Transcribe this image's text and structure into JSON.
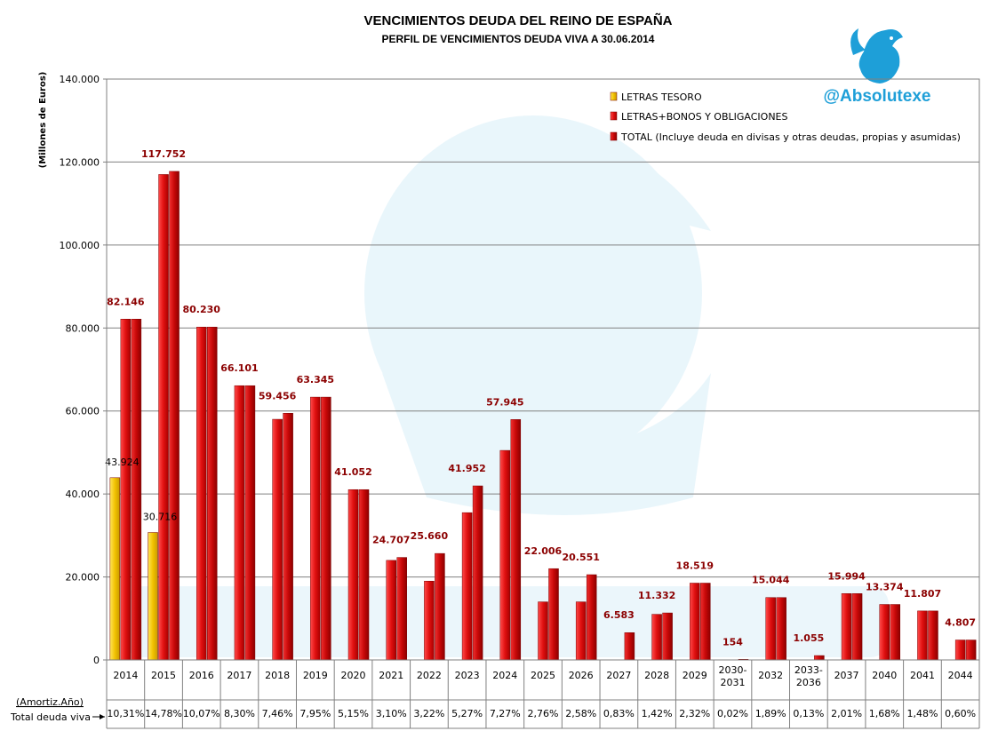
{
  "chart_data": {
    "type": "bar",
    "title": "VENCIMIENTOS DEUDA DEL REINO DE ESPAÑA",
    "subtitle": "PERFIL DE VENCIMIENTOS DEUDA VIVA A 30.06.2014",
    "ylabel": "(Millones de Euros)",
    "ylim": [
      0,
      140000
    ],
    "yticks": [
      0,
      20000,
      40000,
      60000,
      80000,
      100000,
      120000,
      140000
    ],
    "ytick_labels": [
      "0",
      "20.000",
      "40.000",
      "60.000",
      "80.000",
      "100.000",
      "120.000",
      "140.000"
    ],
    "grid": true,
    "legend_position": "top-right",
    "categories": [
      "2014",
      "2015",
      "2016",
      "2017",
      "2018",
      "2019",
      "2020",
      "2021",
      "2022",
      "2023",
      "2024",
      "2025",
      "2026",
      "2027",
      "2028",
      "2029",
      "2030-\n2031",
      "2032",
      "2033-\n2036",
      "2037",
      "2040",
      "2041",
      "2044"
    ],
    "series": [
      {
        "name": "LETRAS TESORO",
        "color": "#f2c200",
        "values": [
          43924,
          30716,
          null,
          null,
          null,
          null,
          null,
          null,
          null,
          null,
          null,
          null,
          null,
          null,
          null,
          null,
          null,
          null,
          null,
          null,
          null,
          null,
          null
        ],
        "labels": [
          "43.924",
          "30.716",
          "",
          "",
          "",
          "",
          "",
          "",
          "",
          "",
          "",
          "",
          "",
          "",
          "",
          "",
          "",
          "",
          "",
          "",
          "",
          "",
          ""
        ]
      },
      {
        "name": "LETRAS+BONOS Y OBLIGACIONES",
        "color": "#e21a1a",
        "values": [
          82146,
          117000,
          80230,
          66101,
          58000,
          63345,
          41052,
          24000,
          19000,
          35500,
          50500,
          14000,
          14000,
          0,
          11000,
          18519,
          0,
          15044,
          0,
          15994,
          13374,
          11807,
          4807
        ],
        "labels": []
      },
      {
        "name": "TOTAL (Incluye deuda en divisas y otras deudas, propias y asumidas)",
        "color": "#c81010",
        "values": [
          82146,
          117752,
          80230,
          66101,
          59456,
          63345,
          41052,
          24707,
          25660,
          41952,
          57945,
          22006,
          20551,
          6583,
          11332,
          18519,
          154,
          15044,
          1055,
          15994,
          13374,
          11807,
          4807
        ],
        "labels": [
          "82.146",
          "117.752",
          "80.230",
          "66.101",
          "59.456",
          "63.345",
          "41.052",
          "24.707",
          "25.660",
          "41.952",
          "57.945",
          "22.006",
          "20.551",
          "6.583",
          "11.332",
          "18.519",
          "154",
          "15.044",
          "1.055",
          "15.994",
          "13.374",
          "11.807",
          "4.807"
        ]
      }
    ],
    "table_rows": [
      {
        "label": "(Amortiz.Año)",
        "values": []
      },
      {
        "label": "Total deuda viva",
        "values": [
          "10,31%",
          "14,78%",
          "10,07%",
          "8,30%",
          "7,46%",
          "7,95%",
          "5,15%",
          "3,10%",
          "3,22%",
          "5,27%",
          "7,27%",
          "2,76%",
          "2,58%",
          "0,83%",
          "1,42%",
          "2,32%",
          "0,02%",
          "1,89%",
          "0,13%",
          "2,01%",
          "1,68%",
          "1,48%",
          "0,60%"
        ]
      }
    ]
  },
  "watermark": {
    "handle": "@Absolutexe",
    "logo_icon": "griffin-logo-icon",
    "background_icon": "eagle-emblem-icon",
    "color": "#1e9fd8"
  }
}
